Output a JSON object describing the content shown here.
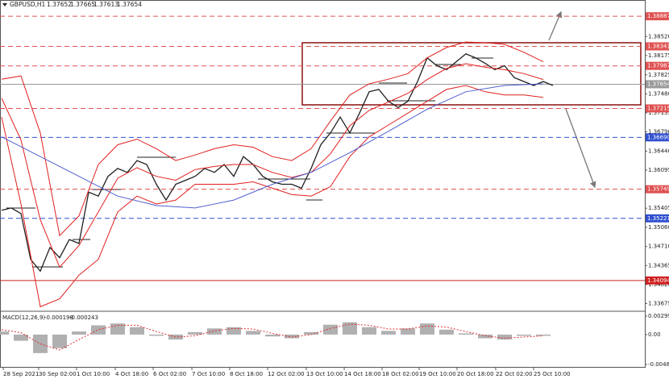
{
  "chart_data": [
    {
      "type": "line",
      "title": "GBPUSD,H1",
      "ohlc": [
        1.37652,
        1.37665,
        1.37613,
        1.37654
      ],
      "xlim": [
        0,
        66.5
      ],
      "ylim": [
        1.3355,
        1.39065
      ],
      "yticks": [
        {
          "value": 1.3852,
          "label": "1.38520"
        },
        1.38175,
        1.37825,
        {
          "value": 1.3748,
          "label": "1.37480"
        },
        1.37135,
        {
          "value": 1.3679,
          "label": "1.36790"
        },
        {
          "value": 1.3644,
          "label": "1.36440"
        },
        1.36095,
        {
          "value": 1.3575,
          "label": "1.35750"
        },
        1.35405,
        {
          "value": 1.3506,
          "label": "1.35060"
        },
        {
          "value": 1.3471,
          "label": "1.34710"
        },
        1.34365,
        {
          "value": 1.3402,
          "label": "1.34020"
        },
        1.33675
      ],
      "xticks": [
        {
          "value": 0.17,
          "label": "28 Sep 2021"
        },
        {
          "value": 3.83,
          "label": "30 Sep 02:00"
        },
        {
          "value": 7.75,
          "label": "1 Oct 10:00"
        },
        {
          "value": 11.75,
          "label": "4 Oct 18:00"
        },
        {
          "value": 15.67,
          "label": "6 Oct 02:00"
        },
        {
          "value": 19.67,
          "label": "7 Oct 10:00"
        },
        {
          "value": 23.58,
          "label": "8 Oct 18:00"
        },
        {
          "value": 27.5,
          "label": "12 Oct 02:00"
        },
        {
          "value": 31.5,
          "label": "13 Oct 10:00"
        },
        {
          "value": 35.42,
          "label": "14 Oct 18:00"
        },
        {
          "value": 39.33,
          "label": "18 Oct 02:00"
        },
        {
          "value": 43.17,
          "label": "19 Oct 10:00"
        },
        {
          "value": 47.08,
          "label": "20 Oct 18:00"
        },
        {
          "value": 51.08,
          "label": "22 Oct 02:00"
        },
        {
          "value": 55,
          "label": "25 Oct 10:00"
        }
      ],
      "levels": [
        {
          "value": 1.38887,
          "color": "#e05050",
          "style": "dashed"
        },
        {
          "value": 1.38341,
          "color": "#e05050",
          "style": "dashed"
        },
        {
          "value": 1.37987,
          "color": "#e05050",
          "style": "dashed"
        },
        {
          "value": 1.37654,
          "color": "#9a9a9a",
          "style": "solid"
        },
        {
          "value": 1.37215,
          "color": "#e05050",
          "style": "dashed"
        },
        {
          "value": {
            "value": 1.3669,
            "label": "1.36690"
          },
          "color": "#3050d0",
          "style": "dashed"
        },
        {
          "value": 1.35749,
          "color": "#e05050",
          "style": "dashed"
        },
        {
          "value": 1.35221,
          "color": "#3050d0",
          "style": "dashed"
        },
        {
          "value": 1.34094,
          "color": "#d02020",
          "style": "solid"
        }
      ],
      "series": [
        {
          "kind": "line",
          "color": "#202020",
          "width": 1.3,
          "x": [
            0,
            1,
            2,
            3,
            4,
            5,
            6,
            7,
            8,
            9,
            10,
            11,
            12,
            13,
            14,
            15,
            16,
            17,
            18,
            19,
            20,
            21,
            22,
            23,
            24,
            25,
            26,
            27,
            28,
            29,
            30,
            31,
            32,
            33,
            34,
            35,
            36,
            37,
            38,
            39,
            40,
            41,
            42,
            43,
            44,
            45,
            46,
            47,
            48,
            49,
            50,
            51,
            52,
            53,
            54,
            55,
            56,
            57
          ],
          "values": [
            1.35367,
            1.3541,
            1.35309,
            1.34478,
            1.34263,
            1.34693,
            1.34507,
            1.34836,
            1.34765,
            1.35696,
            1.35625,
            1.35983,
            1.36126,
            1.36055,
            1.3627,
            1.36198,
            1.3584,
            1.35553,
            1.3584,
            1.35911,
            1.35983,
            1.36126,
            1.36055,
            1.36198,
            1.35983,
            1.36341,
            1.36198,
            1.35983,
            1.35883,
            1.3584,
            1.3584,
            1.35768,
            1.36126,
            1.36556,
            1.36771,
            1.37058,
            1.36771,
            1.3713,
            1.37517,
            1.3756,
            1.37345,
            1.3723,
            1.37345,
            1.37703,
            1.38133,
            1.3799,
            1.37918,
            1.38062,
            1.38205,
            1.38133,
            1.38033,
            1.37918,
            1.3799,
            1.37775,
            1.37703,
            1.37632,
            1.37703,
            1.37632
          ]
        },
        {
          "kind": "line",
          "color": "#e02020",
          "width": 1,
          "x": [
            0,
            2,
            4,
            6,
            8,
            10,
            12,
            14,
            16,
            18,
            20,
            22,
            24,
            26,
            28,
            30,
            32,
            34,
            36,
            38,
            40,
            42,
            44,
            46,
            48,
            50,
            52,
            54,
            56
          ],
          "values": [
            1.37746,
            1.37804,
            1.36771,
            1.34908,
            1.35266,
            1.36198,
            1.36556,
            1.36657,
            1.36485,
            1.3627,
            1.3637,
            1.36485,
            1.36556,
            1.36513,
            1.36341,
            1.3627,
            1.36485,
            1.36986,
            1.37459,
            1.3766,
            1.37746,
            1.37847,
            1.38133,
            1.3832,
            1.3842,
            1.38406,
            1.38377,
            1.38234,
            1.38062
          ]
        },
        {
          "kind": "line",
          "color": "#e02020",
          "width": 1,
          "x": [
            0,
            2,
            4,
            6,
            8,
            10,
            12,
            14,
            16,
            18,
            20,
            22,
            24,
            26,
            28,
            30,
            32,
            34,
            36,
            38,
            40,
            42,
            44,
            46,
            48,
            50,
            52,
            54,
            56
          ],
          "values": [
            1.37402,
            1.36643,
            1.35195,
            1.34335,
            1.34729,
            1.35338,
            1.35947,
            1.36141,
            1.35983,
            1.35912,
            1.36105,
            1.36163,
            1.36198,
            1.36198,
            1.36055,
            1.35962,
            1.36055,
            1.36392,
            1.369,
            1.3718,
            1.37331,
            1.37489,
            1.37739,
            1.3794,
            1.38026,
            1.37962,
            1.37918,
            1.37847,
            1.37739
          ]
        },
        {
          "kind": "line",
          "color": "#e02020",
          "width": 1,
          "x": [
            0,
            2,
            4,
            6,
            8,
            10,
            12,
            14,
            16,
            18,
            20,
            22,
            24,
            26,
            28,
            30,
            32,
            34,
            36,
            38,
            40,
            42,
            44,
            46,
            48,
            50,
            52,
            54,
            56
          ],
          "values": [
            1.37058,
            1.35481,
            1.33618,
            1.33761,
            1.34191,
            1.34478,
            1.35338,
            1.35625,
            1.35481,
            1.35553,
            1.3584,
            1.3584,
            1.3584,
            1.35883,
            1.35768,
            1.35653,
            1.35625,
            1.35797,
            1.36341,
            1.367,
            1.36915,
            1.3713,
            1.37345,
            1.3756,
            1.37632,
            1.37517,
            1.37459,
            1.37459,
            1.37416
          ]
        },
        {
          "kind": "line",
          "color": "#5060d0",
          "width": 1,
          "x": [
            0,
            4,
            8,
            12,
            16,
            20,
            24,
            28,
            32,
            36,
            40,
            44,
            48,
            52,
            56
          ],
          "values": [
            1.367,
            1.36341,
            1.35983,
            1.35625,
            1.35453,
            1.3541,
            1.35553,
            1.3584,
            1.36055,
            1.36413,
            1.368,
            1.37201,
            1.37517,
            1.37632,
            1.3766
          ]
        }
      ]
    },
    {
      "type": "macd",
      "title": "MACD(12,26,9)",
      "readings": [
        -0.000198,
        -0.000243
      ],
      "xlim": [
        0,
        66.5
      ],
      "ylim": [
        -0.00524,
        0.00365
      ],
      "yticks": [
        0.002996,
        {
          "value": 0,
          "label": "0.00"
        },
        -0.004847
      ],
      "series": [
        {
          "kind": "bar",
          "color": "#b0b0b0",
          "x": [
            0,
            2,
            4,
            6,
            8,
            10,
            12,
            14,
            16,
            18,
            20,
            22,
            24,
            26,
            28,
            30,
            32,
            34,
            36,
            38,
            40,
            42,
            44,
            46,
            48,
            50,
            52,
            54,
            56
          ],
          "values": [
            0.0005,
            -0.001,
            -0.003,
            -0.0022,
            0.0005,
            0.0015,
            0.0018,
            0.0012,
            -0.0002,
            -0.0008,
            0.0004,
            0.001,
            0.0012,
            0.0006,
            -0.0003,
            -0.0006,
            0.0004,
            0.0016,
            0.002,
            0.0012,
            0.0006,
            0.001,
            0.0018,
            0.0008,
            0.0002,
            -0.0006,
            -0.0008,
            -0.0002,
            -0.0002
          ]
        },
        {
          "kind": "line",
          "color": "#e03030",
          "width": 1,
          "dash": "2,2",
          "x": [
            0,
            2,
            4,
            6,
            8,
            10,
            12,
            14,
            16,
            18,
            20,
            22,
            24,
            26,
            28,
            30,
            32,
            34,
            36,
            38,
            40,
            42,
            44,
            46,
            48,
            50,
            52,
            54,
            56
          ],
          "values": [
            0.0008,
            0.0003,
            -0.0015,
            -0.0025,
            -0.0008,
            0.0008,
            0.0015,
            0.0015,
            0.0005,
            -0.0004,
            -0.0002,
            0.0006,
            0.001,
            0.0009,
            0.0002,
            -0.0004,
            0,
            0.001,
            0.0017,
            0.0015,
            0.0009,
            0.0009,
            0.0014,
            0.0012,
            0.0005,
            -0.0002,
            -0.0006,
            -0.0004,
            -0.0002
          ]
        }
      ]
    }
  ]
}
